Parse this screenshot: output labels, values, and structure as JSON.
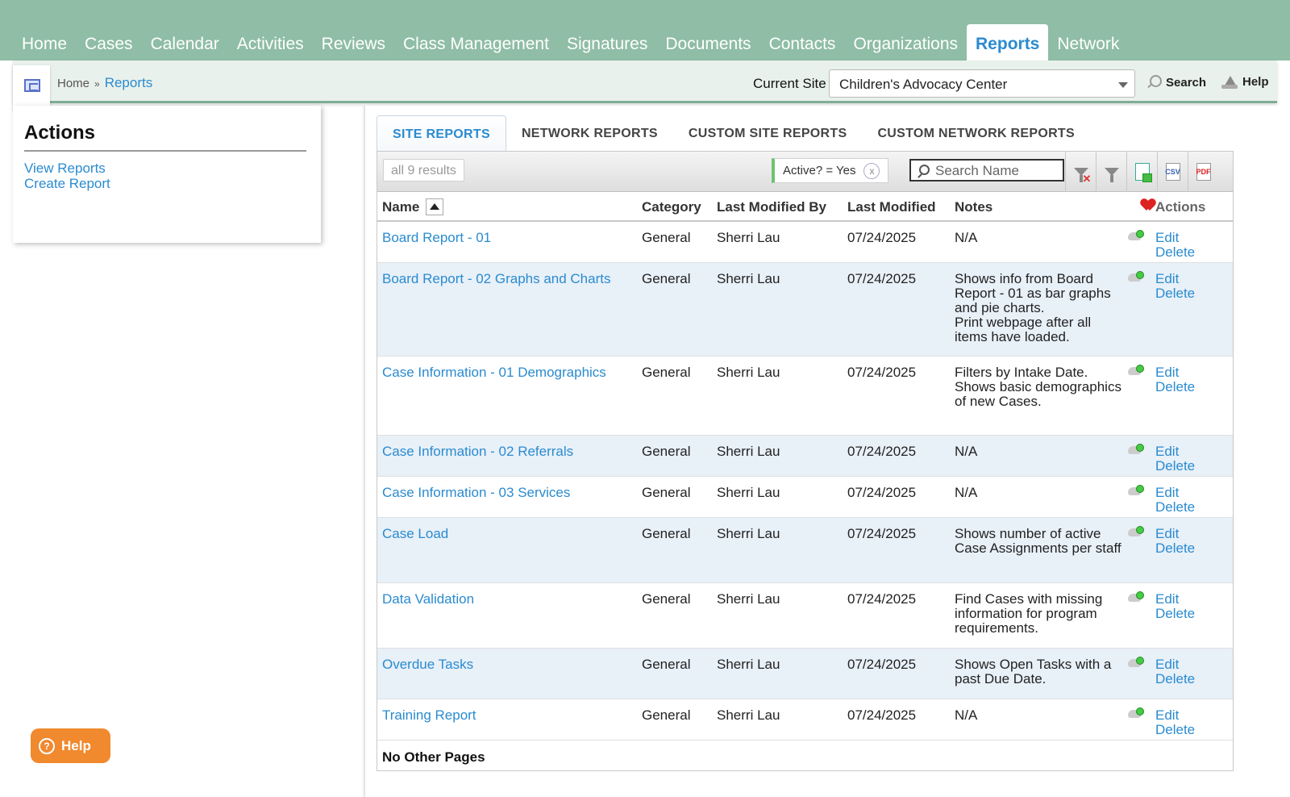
{
  "nav": {
    "items": [
      "Home",
      "Cases",
      "Calendar",
      "Activities",
      "Reviews",
      "Class Management",
      "Signatures",
      "Documents",
      "Contacts",
      "Organizations",
      "Reports",
      "Network"
    ],
    "active": "Reports"
  },
  "breadcrumb": {
    "home": "Home",
    "separator": "»",
    "current": "Reports"
  },
  "site": {
    "label": "Current Site",
    "selected": "Children's Advocacy Center"
  },
  "top_links": {
    "search": "Search",
    "help": "Help"
  },
  "actions": {
    "title": "Actions",
    "links": [
      "View Reports",
      "Create Report"
    ]
  },
  "tabs": [
    "SITE REPORTS",
    "NETWORK REPORTS",
    "CUSTOM SITE REPORTS",
    "CUSTOM NETWORK REPORTS"
  ],
  "toolbar": {
    "results": "all 9 results",
    "filter": "Active? = Yes",
    "filter_clear": "x",
    "search_placeholder": "Search Name",
    "csv": "CSV",
    "pdf": "PDF"
  },
  "columns": {
    "name": "Name",
    "category": "Category",
    "modified_by": "Last Modified By",
    "modified": "Last Modified",
    "notes": "Notes",
    "actions": "Actions"
  },
  "rows": [
    {
      "name": "Board Report - 01",
      "category": "General",
      "modified_by": "Sherri Lau",
      "modified": "07/24/2025",
      "notes": "N/A"
    },
    {
      "name": "Board Report - 02 Graphs and Charts",
      "category": "General",
      "modified_by": "Sherri Lau",
      "modified": "07/24/2025",
      "notes": "Shows info from Board Report - 01 as bar graphs and pie charts.\nPrint webpage after all items have loaded."
    },
    {
      "name": "Case Information - 01 Demographics",
      "category": "General",
      "modified_by": "Sherri Lau",
      "modified": "07/24/2025",
      "notes": "Filters by Intake Date. Shows basic demographics of new Cases."
    },
    {
      "name": "Case Information - 02 Referrals",
      "category": "General",
      "modified_by": "Sherri Lau",
      "modified": "07/24/2025",
      "notes": "N/A"
    },
    {
      "name": "Case Information - 03 Services",
      "category": "General",
      "modified_by": "Sherri Lau",
      "modified": "07/24/2025",
      "notes": "N/A"
    },
    {
      "name": "Case Load",
      "category": "General",
      "modified_by": "Sherri Lau",
      "modified": "07/24/2025",
      "notes": "Shows number of active Case Assignments per staff"
    },
    {
      "name": "Data Validation",
      "category": "General",
      "modified_by": "Sherri Lau",
      "modified": "07/24/2025",
      "notes": "Find Cases with missing information for program requirements."
    },
    {
      "name": "Overdue Tasks",
      "category": "General",
      "modified_by": "Sherri Lau",
      "modified": "07/24/2025",
      "notes": "Shows Open Tasks with a past Due Date."
    },
    {
      "name": "Training Report",
      "category": "General",
      "modified_by": "Sherri Lau",
      "modified": "07/24/2025",
      "notes": "N/A"
    }
  ],
  "row_actions": {
    "edit": "Edit",
    "delete": "Delete"
  },
  "footer": "No Other Pages",
  "help_button": "Help"
}
